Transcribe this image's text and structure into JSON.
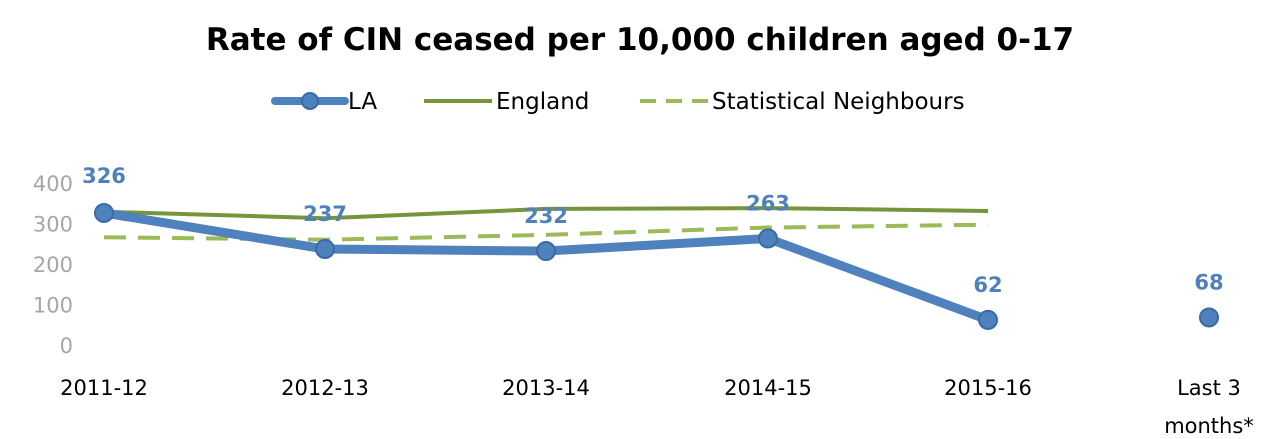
{
  "chart_data": {
    "type": "line",
    "title": "Rate of CIN ceased per 10,000 children aged 0-17",
    "categories": [
      "2011-12",
      "2012-13",
      "2013-14",
      "2014-15",
      "2015-16",
      "Last 3 months*"
    ],
    "category_lines": [
      [
        "2011-12"
      ],
      [
        "2012-13"
      ],
      [
        "2013-14"
      ],
      [
        "2014-15"
      ],
      [
        "2015-16"
      ],
      [
        "Last 3",
        "months*"
      ]
    ],
    "y_ticks": [
      "0",
      "100",
      "200",
      "300",
      "400"
    ],
    "ylim": [
      0,
      400
    ],
    "grid": false,
    "legend_position": "top",
    "series": [
      {
        "name": "LA",
        "values": [
          326,
          237,
          232,
          263,
          62,
          68
        ],
        "data_labels": [
          "326",
          "237",
          "232",
          "263",
          "62",
          "68"
        ],
        "color": "#4f81bd",
        "style": "line-markers",
        "gap_before_last": true
      },
      {
        "name": "England",
        "values": [
          329,
          313,
          336,
          338,
          331,
          null
        ],
        "color": "#77933c",
        "style": "solid"
      },
      {
        "name": "Statistical Neighbours",
        "values": [
          266,
          260,
          272,
          290,
          297,
          null
        ],
        "color": "#9bbb59",
        "style": "dashed"
      }
    ]
  }
}
